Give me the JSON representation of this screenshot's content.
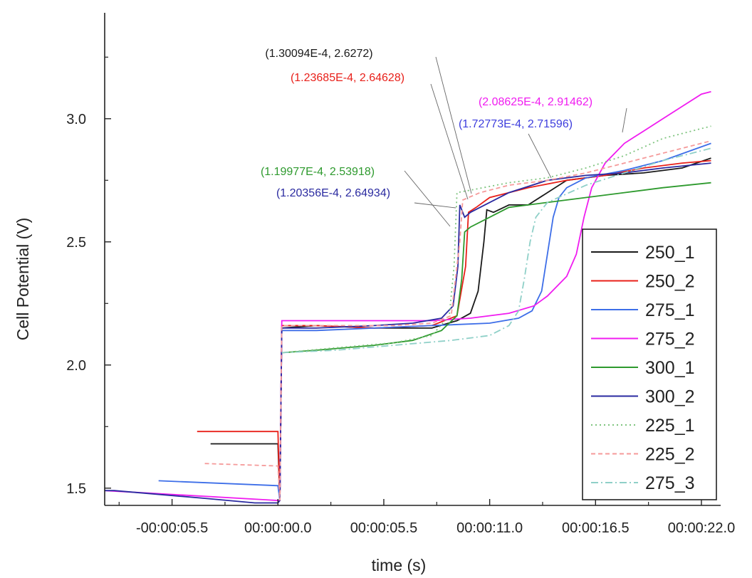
{
  "chart_data": {
    "type": "line",
    "xlabel": "time (s)",
    "ylabel": "Cell Potential (V)",
    "xlim": [
      -9.0,
      23.0
    ],
    "ylim": [
      1.43,
      3.43
    ],
    "x_ticks": [
      {
        "value": -5.5,
        "label": "-00:00:05.5"
      },
      {
        "value": 0.0,
        "label": "00:00:00.0"
      },
      {
        "value": 5.5,
        "label": "00:00:05.5"
      },
      {
        "value": 11.0,
        "label": "00:00:11.0"
      },
      {
        "value": 16.5,
        "label": "00:00:16.5"
      },
      {
        "value": 22.0,
        "label": "00:00:22.0"
      }
    ],
    "y_ticks": [
      {
        "value": 1.5,
        "label": "1.5"
      },
      {
        "value": 2.0,
        "label": "2.0"
      },
      {
        "value": 2.5,
        "label": "2.5"
      },
      {
        "value": 3.0,
        "label": "3.0"
      }
    ],
    "grid": false,
    "legend_position": "bottom-right",
    "series": [
      {
        "name": "250_1",
        "color": "#1a1a1a",
        "dash": "solid",
        "points": [
          [
            -3.5,
            1.68
          ],
          [
            0,
            1.68
          ],
          [
            0.1,
            1.45
          ],
          [
            0.2,
            2.15
          ],
          [
            2,
            2.16
          ],
          [
            5,
            2.15
          ],
          [
            8,
            2.15
          ],
          [
            9.3,
            2.18
          ],
          [
            10,
            2.21
          ],
          [
            10.4,
            2.3
          ],
          [
            10.7,
            2.5
          ],
          [
            10.85,
            2.63
          ],
          [
            11.2,
            2.62
          ],
          [
            12,
            2.65
          ],
          [
            13,
            2.65
          ],
          [
            14,
            2.7
          ],
          [
            15,
            2.75
          ],
          [
            17,
            2.77
          ],
          [
            19,
            2.78
          ],
          [
            21,
            2.8
          ],
          [
            22.5,
            2.84
          ]
        ]
      },
      {
        "name": "250_2",
        "color": "#e8201a",
        "dash": "solid",
        "points": [
          [
            -4.2,
            1.73
          ],
          [
            0,
            1.73
          ],
          [
            0.1,
            1.45
          ],
          [
            0.2,
            2.16
          ],
          [
            2,
            2.16
          ],
          [
            5,
            2.15
          ],
          [
            8,
            2.16
          ],
          [
            9.3,
            2.2
          ],
          [
            9.75,
            2.4
          ],
          [
            9.9,
            2.62
          ],
          [
            10.3,
            2.64
          ],
          [
            11,
            2.68
          ],
          [
            12,
            2.7
          ],
          [
            13,
            2.72
          ],
          [
            15,
            2.75
          ],
          [
            17,
            2.77
          ],
          [
            19,
            2.8
          ],
          [
            21,
            2.82
          ],
          [
            22.5,
            2.83
          ]
        ]
      },
      {
        "name": "275_1",
        "color": "#3d6ee8",
        "dash": "solid",
        "points": [
          [
            -6.2,
            1.53
          ],
          [
            0,
            1.51
          ],
          [
            0.1,
            1.45
          ],
          [
            0.2,
            2.14
          ],
          [
            2,
            2.14
          ],
          [
            5,
            2.15
          ],
          [
            8,
            2.16
          ],
          [
            11,
            2.17
          ],
          [
            12.5,
            2.19
          ],
          [
            13.2,
            2.22
          ],
          [
            13.7,
            2.3
          ],
          [
            14,
            2.45
          ],
          [
            14.3,
            2.6
          ],
          [
            14.6,
            2.68
          ],
          [
            15,
            2.72
          ],
          [
            16,
            2.76
          ],
          [
            18,
            2.79
          ],
          [
            20,
            2.83
          ],
          [
            22.5,
            2.9
          ]
        ]
      },
      {
        "name": "275_2",
        "color": "#f01cf0",
        "dash": "solid",
        "points": [
          [
            -9.0,
            1.49
          ],
          [
            -9,
            1.49
          ],
          [
            0,
            1.45
          ],
          [
            0.1,
            1.45
          ],
          [
            0.2,
            2.18
          ],
          [
            2,
            2.18
          ],
          [
            5,
            2.18
          ],
          [
            8,
            2.18
          ],
          [
            10,
            2.19
          ],
          [
            12,
            2.21
          ],
          [
            13.3,
            2.24
          ],
          [
            14,
            2.28
          ],
          [
            15,
            2.36
          ],
          [
            15.5,
            2.45
          ],
          [
            15.9,
            2.6
          ],
          [
            16.3,
            2.72
          ],
          [
            17,
            2.82
          ],
          [
            18,
            2.9
          ],
          [
            19,
            2.95
          ],
          [
            20,
            3.0
          ],
          [
            21,
            3.05
          ],
          [
            22,
            3.1
          ],
          [
            22.5,
            3.11
          ]
        ]
      },
      {
        "name": "300_1",
        "color": "#2e9a2e",
        "dash": "solid",
        "points": [
          [
            0.2,
            2.05
          ],
          [
            2,
            2.06
          ],
          [
            5,
            2.08
          ],
          [
            7,
            2.1
          ],
          [
            8.5,
            2.14
          ],
          [
            9.3,
            2.2
          ],
          [
            9.55,
            2.35
          ],
          [
            9.7,
            2.54
          ],
          [
            10,
            2.56
          ],
          [
            11,
            2.6
          ],
          [
            12,
            2.64
          ],
          [
            13,
            2.65
          ],
          [
            14,
            2.66
          ],
          [
            16,
            2.68
          ],
          [
            18,
            2.7
          ],
          [
            20,
            2.72
          ],
          [
            22.5,
            2.74
          ]
        ]
      },
      {
        "name": "300_2",
        "color": "#2a2aa0",
        "dash": "solid",
        "points": [
          [
            -9.0,
            1.49
          ],
          [
            -8.5,
            1.49
          ],
          [
            -7,
            1.48
          ],
          [
            -4,
            1.46
          ],
          [
            -1.2,
            1.44
          ],
          [
            0,
            1.44
          ],
          [
            0.1,
            1.45
          ],
          [
            0.2,
            2.15
          ],
          [
            2,
            2.15
          ],
          [
            5,
            2.16
          ],
          [
            7,
            2.17
          ],
          [
            8.5,
            2.19
          ],
          [
            9.1,
            2.24
          ],
          [
            9.35,
            2.4
          ],
          [
            9.45,
            2.65
          ],
          [
            9.7,
            2.6
          ],
          [
            10,
            2.62
          ],
          [
            11,
            2.66
          ],
          [
            12,
            2.7
          ],
          [
            14,
            2.75
          ],
          [
            16,
            2.77
          ],
          [
            18,
            2.78
          ],
          [
            20,
            2.8
          ],
          [
            22.5,
            2.82
          ]
        ]
      },
      {
        "name": "225_1",
        "color": "#7fc47f",
        "dash": "dot",
        "points": [
          [
            0.2,
            2.05
          ],
          [
            3,
            2.07
          ],
          [
            6,
            2.09
          ],
          [
            8,
            2.12
          ],
          [
            8.9,
            2.2
          ],
          [
            9.15,
            2.4
          ],
          [
            9.3,
            2.7
          ],
          [
            10,
            2.71
          ],
          [
            12,
            2.74
          ],
          [
            14,
            2.76
          ],
          [
            16,
            2.8
          ],
          [
            18,
            2.85
          ],
          [
            20,
            2.92
          ],
          [
            22.5,
            2.97
          ]
        ]
      },
      {
        "name": "225_2",
        "color": "#f59a9a",
        "dash": "dash",
        "points": [
          [
            -3.8,
            1.6
          ],
          [
            0,
            1.59
          ],
          [
            0.1,
            1.45
          ],
          [
            0.2,
            2.16
          ],
          [
            3,
            2.16
          ],
          [
            6,
            2.16
          ],
          [
            8,
            2.17
          ],
          [
            9,
            2.2
          ],
          [
            9.45,
            2.5
          ],
          [
            9.6,
            2.67
          ],
          [
            10.5,
            2.7
          ],
          [
            12,
            2.73
          ],
          [
            14,
            2.75
          ],
          [
            16,
            2.78
          ],
          [
            18,
            2.82
          ],
          [
            20,
            2.86
          ],
          [
            22.5,
            2.91
          ]
        ]
      },
      {
        "name": "275_3",
        "color": "#8fd0c8",
        "dash": "dashdot",
        "points": [
          [
            0.2,
            2.05
          ],
          [
            3,
            2.06
          ],
          [
            6,
            2.08
          ],
          [
            9,
            2.1
          ],
          [
            11,
            2.12
          ],
          [
            12,
            2.16
          ],
          [
            12.5,
            2.22
          ],
          [
            12.8,
            2.35
          ],
          [
            13.1,
            2.5
          ],
          [
            13.4,
            2.6
          ],
          [
            14,
            2.66
          ],
          [
            16,
            2.73
          ],
          [
            18,
            2.78
          ],
          [
            20,
            2.83
          ],
          [
            22.5,
            2.88
          ]
        ]
      }
    ],
    "annotations": [
      {
        "text": "(1.30094E-4, 2.6272)",
        "color": "#1a1a1a"
      },
      {
        "text": "(1.23685E-4, 2.64628)",
        "color": "#e8201a"
      },
      {
        "text": "(2.08625E-4, 2.91462)",
        "color": "#f01cf0"
      },
      {
        "text": "(1.72773E-4, 2.71596)",
        "color": "#3d3ddd"
      },
      {
        "text": "(1.19977E-4, 2.53918)",
        "color": "#2e9a2e"
      },
      {
        "text": "(1.20356E-4, 2.64934)",
        "color": "#2a2aa0"
      }
    ]
  }
}
